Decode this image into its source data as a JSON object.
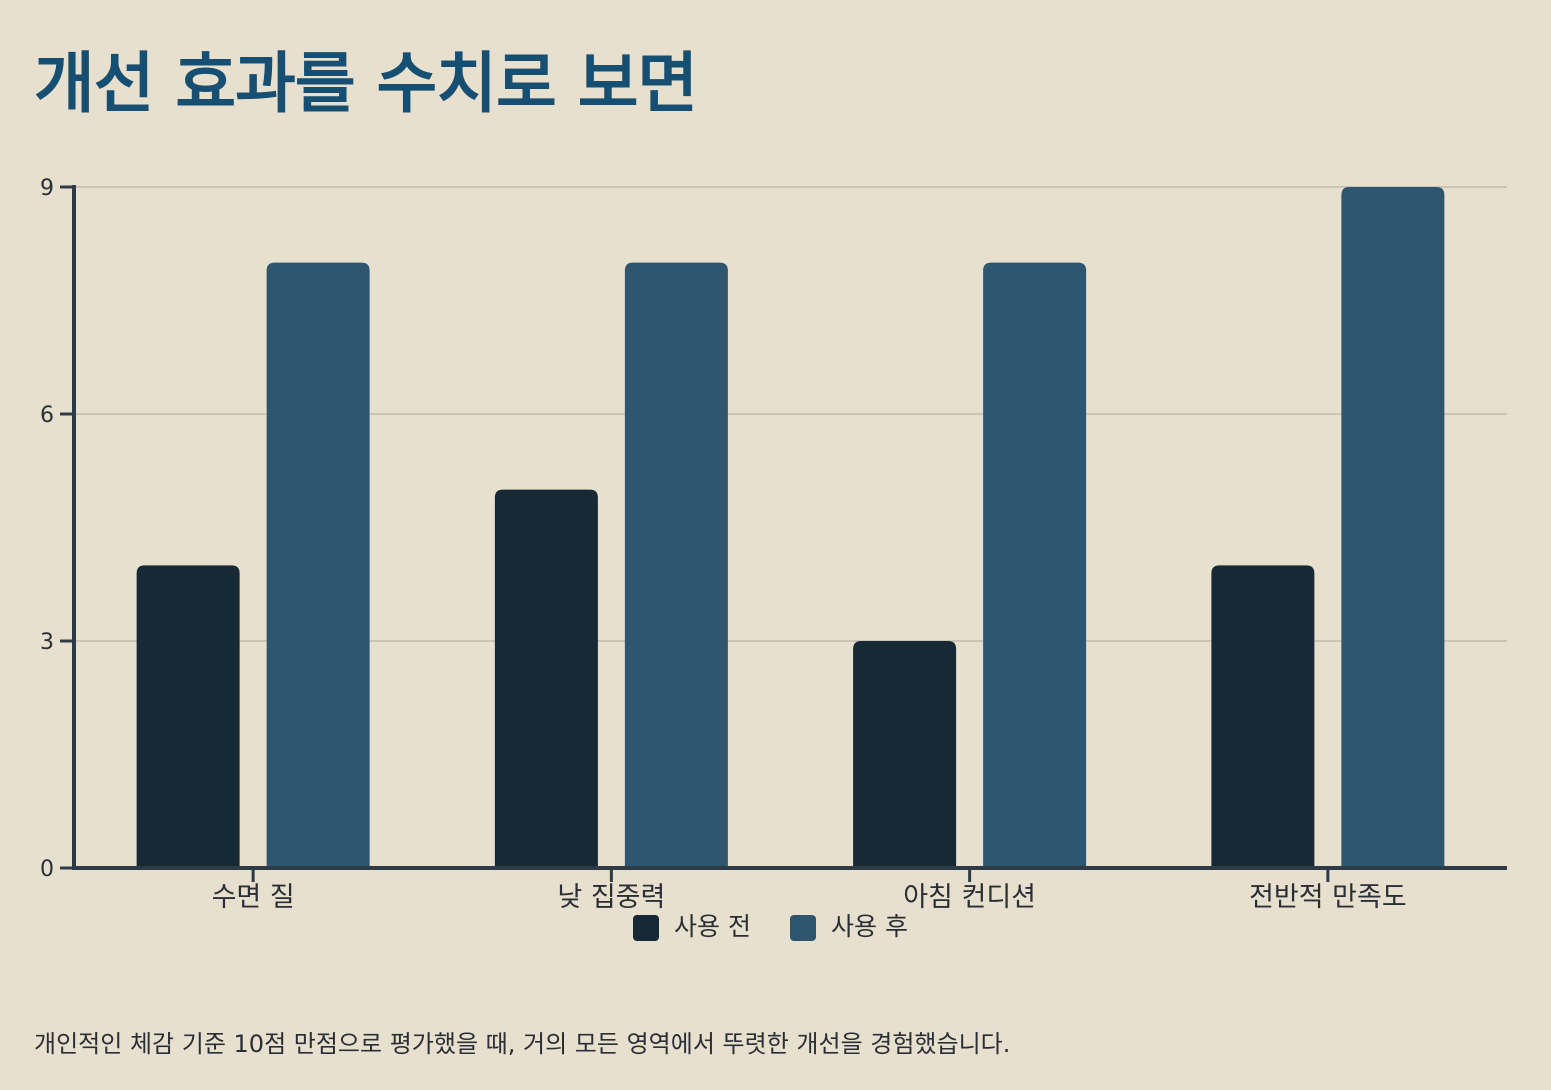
{
  "title": "개선 효과를 수치로 보면",
  "caption": "개인적인 체감 기준 10점 만점으로 평가했을 때, 거의 모든 영역에서 뚜렷한 개선을 경험했습니다.",
  "colors": {
    "background": "#e8e0cf",
    "title": "#174f72",
    "before": "#172934",
    "after": "#2f566f",
    "axis": "#2e3b46",
    "grid": "#c2bcaf"
  },
  "chart_data": {
    "type": "bar",
    "categories": [
      "수면 질",
      "낮 집중력",
      "아침 컨디션",
      "전반적 만족도"
    ],
    "series": [
      {
        "name": "사용 전",
        "values": [
          4,
          5,
          3,
          4
        ]
      },
      {
        "name": "사용 후",
        "values": [
          8,
          8,
          8,
          9
        ]
      }
    ],
    "ylim": [
      0,
      9
    ],
    "yticks": [
      0,
      3,
      6,
      9
    ],
    "grid": true,
    "legend_position": "bottom-center"
  }
}
